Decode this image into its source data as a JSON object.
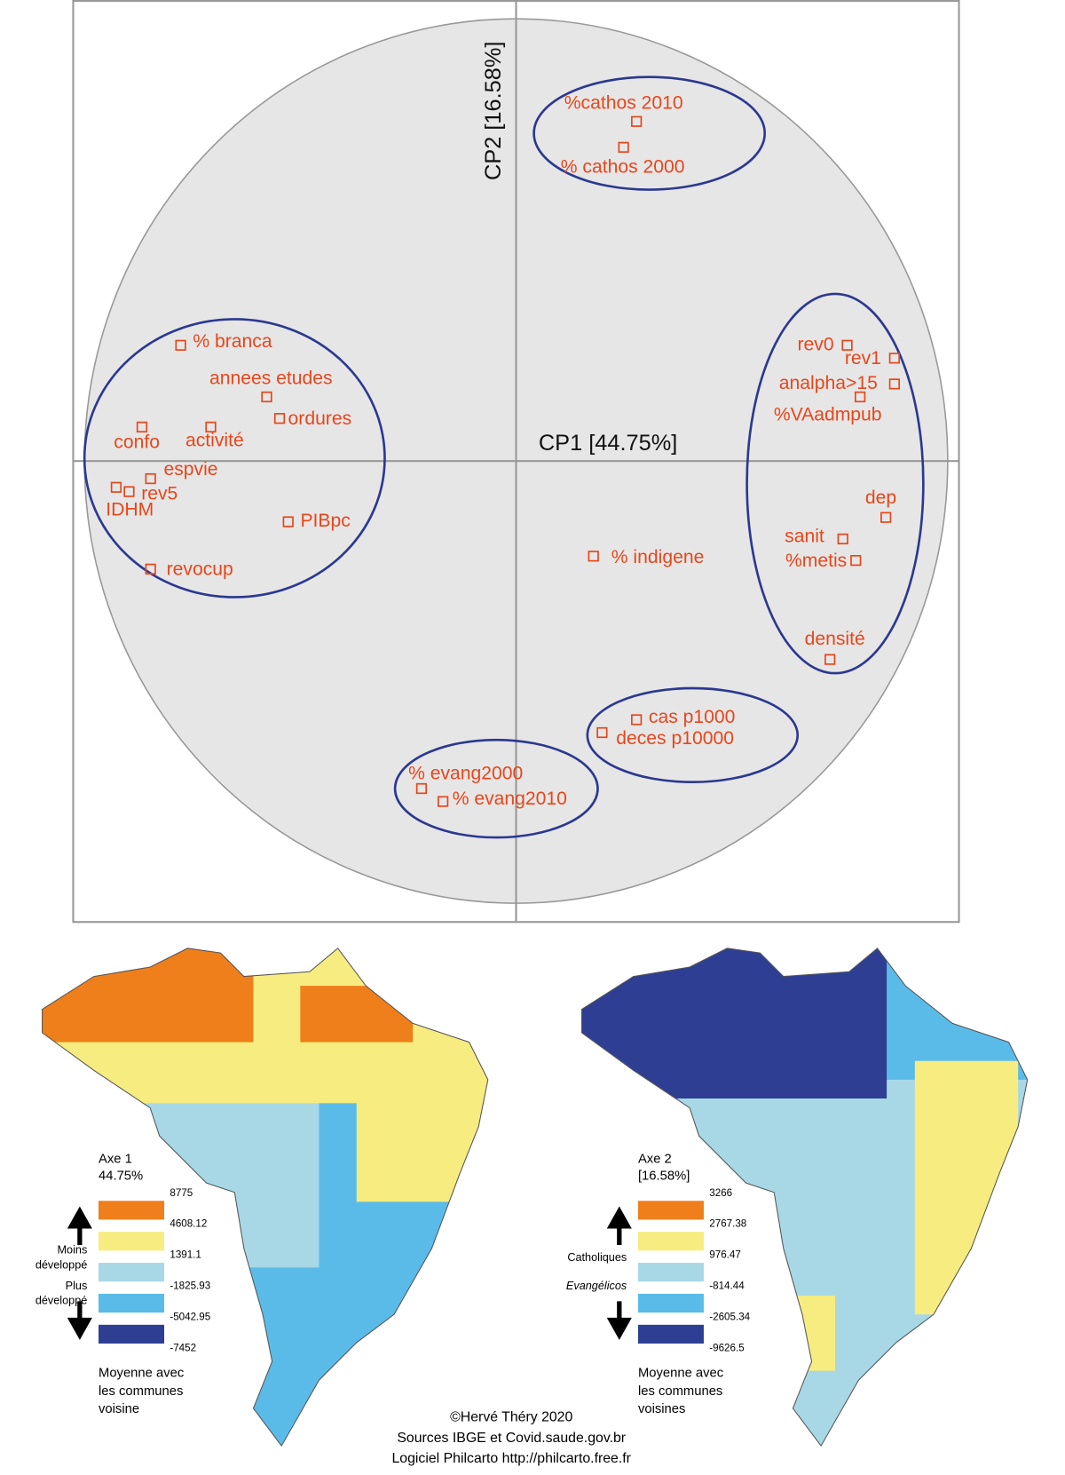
{
  "chart_data": {
    "type": "scatter",
    "x_label": "CP1 [44.75%]",
    "y_label": "CP2 [16.58%]",
    "color": "#e8461b",
    "xlim": [
      -1.03,
      1.03
    ],
    "ylim": [
      -1.07,
      1.07
    ],
    "point_labels": [
      "%cathos 2010",
      "% cathos 2000",
      "rev0",
      "rev1",
      "analpha>15",
      "%VAadmpub",
      "dep",
      "sanit",
      "%metis",
      "densité",
      "% indigene",
      "cas p1000",
      "deces p10000",
      "% evang2000",
      "% evang2010",
      "% branca",
      "annees etudes",
      "ordures",
      "confo",
      "activité",
      "espvie",
      "rev5",
      "IDHM",
      "PIBpc",
      "revocup"
    ],
    "x": [
      0.28,
      0.25,
      0.77,
      0.88,
      0.88,
      0.8,
      0.86,
      0.76,
      0.79,
      0.73,
      0.18,
      0.28,
      0.2,
      -0.22,
      -0.17,
      -0.78,
      -0.58,
      -0.55,
      -0.87,
      -0.71,
      -0.85,
      -0.9,
      -0.93,
      -0.53,
      -0.85
    ],
    "y": [
      0.79,
      0.73,
      0.27,
      0.24,
      0.18,
      0.15,
      -0.13,
      -0.18,
      -0.23,
      -0.46,
      -0.22,
      -0.6,
      -0.63,
      -0.76,
      -0.79,
      0.27,
      0.15,
      0.1,
      0.08,
      0.08,
      -0.04,
      -0.07,
      -0.06,
      -0.14,
      -0.25
    ]
  },
  "maps": [
    {
      "title": "Axe 1",
      "subtitle": "44.75%",
      "breaks": [
        8775,
        4608.12,
        1391.1,
        -1825.93,
        -5042.95,
        -7452
      ],
      "colors": [
        "#ef7f1a",
        "#f7ec80",
        "#a8d8e6",
        "#5bbbe8",
        "#2e3f93"
      ],
      "upper_label": [
        "Moins",
        "développé"
      ],
      "lower_label": [
        "Plus",
        "développé"
      ],
      "note": [
        "Moyenne avec",
        "les communes",
        "voisine"
      ]
    },
    {
      "title": "Axe 2",
      "subtitle": "[16.58%]",
      "breaks": [
        3266,
        2767.38,
        976.47,
        -814.44,
        -2605.34,
        -9626.5
      ],
      "colors": [
        "#ef7f1a",
        "#f7ec80",
        "#a8d8e6",
        "#5bbbe8",
        "#2e3f93"
      ],
      "upper_label": [
        "Catholiques"
      ],
      "lower_label": [
        "Evangélicos"
      ],
      "note": [
        "Moyenne avec",
        "les communes",
        "voisines"
      ]
    }
  ],
  "credits": [
    "©Hervé Théry 2020",
    "Sources IBGE et Covid.saude.gov.br",
    "Logiciel Philcarto http://philcarto.free.fr"
  ]
}
